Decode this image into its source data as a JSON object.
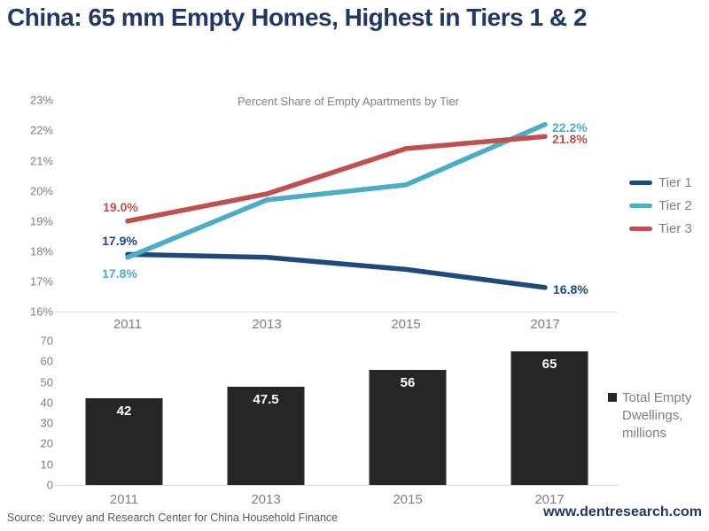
{
  "title": "China: 65 mm Empty Homes, Highest in Tiers 1 & 2",
  "colors": {
    "title_navy": "#1F3864",
    "tier1": "#1F497D",
    "tier2": "#4BACC6",
    "tier3": "#C0504D",
    "bar": "#262626",
    "axis_text": "#7f7f7f",
    "baseline": "#d9d9d9"
  },
  "footer": {
    "source": "Source: Survey and Research Center for China Household Finance",
    "website": "www.dentresearch.com"
  },
  "chart_data": [
    {
      "type": "line",
      "title": "Percent Share of Empty Apartments by Tier",
      "x": [
        "2011",
        "2013",
        "2015",
        "2017"
      ],
      "series": [
        {
          "name": "Tier 1",
          "color": "#1F497D",
          "values": [
            17.9,
            17.8,
            17.4,
            16.8
          ],
          "start_label": "17.9%",
          "end_label": "16.8%"
        },
        {
          "name": "Tier 2",
          "color": "#4BACC6",
          "values": [
            17.8,
            19.7,
            20.2,
            22.2
          ],
          "start_label": "17.8%",
          "end_label": "22.2%"
        },
        {
          "name": "Tier 3",
          "color": "#C0504D",
          "values": [
            19.0,
            19.9,
            21.4,
            21.8
          ],
          "start_label": "19.0%",
          "end_label": "21.8%"
        }
      ],
      "ylim": [
        16,
        23
      ],
      "yticks": [
        "23%",
        "22%",
        "21%",
        "20%",
        "19%",
        "18%",
        "17%",
        "16%"
      ],
      "legend_position": "right",
      "grid": false
    },
    {
      "type": "bar",
      "categories": [
        "2011",
        "2013",
        "2015",
        "2017"
      ],
      "values": [
        42,
        47.5,
        56,
        65
      ],
      "value_labels": [
        "42",
        "47.5",
        "56",
        "65"
      ],
      "legend": "Total Empty Dwellings, millions",
      "ylim": [
        0,
        70
      ],
      "yticks": [
        "70",
        "60",
        "50",
        "40",
        "30",
        "20",
        "10",
        "0"
      ],
      "grid": false
    }
  ]
}
